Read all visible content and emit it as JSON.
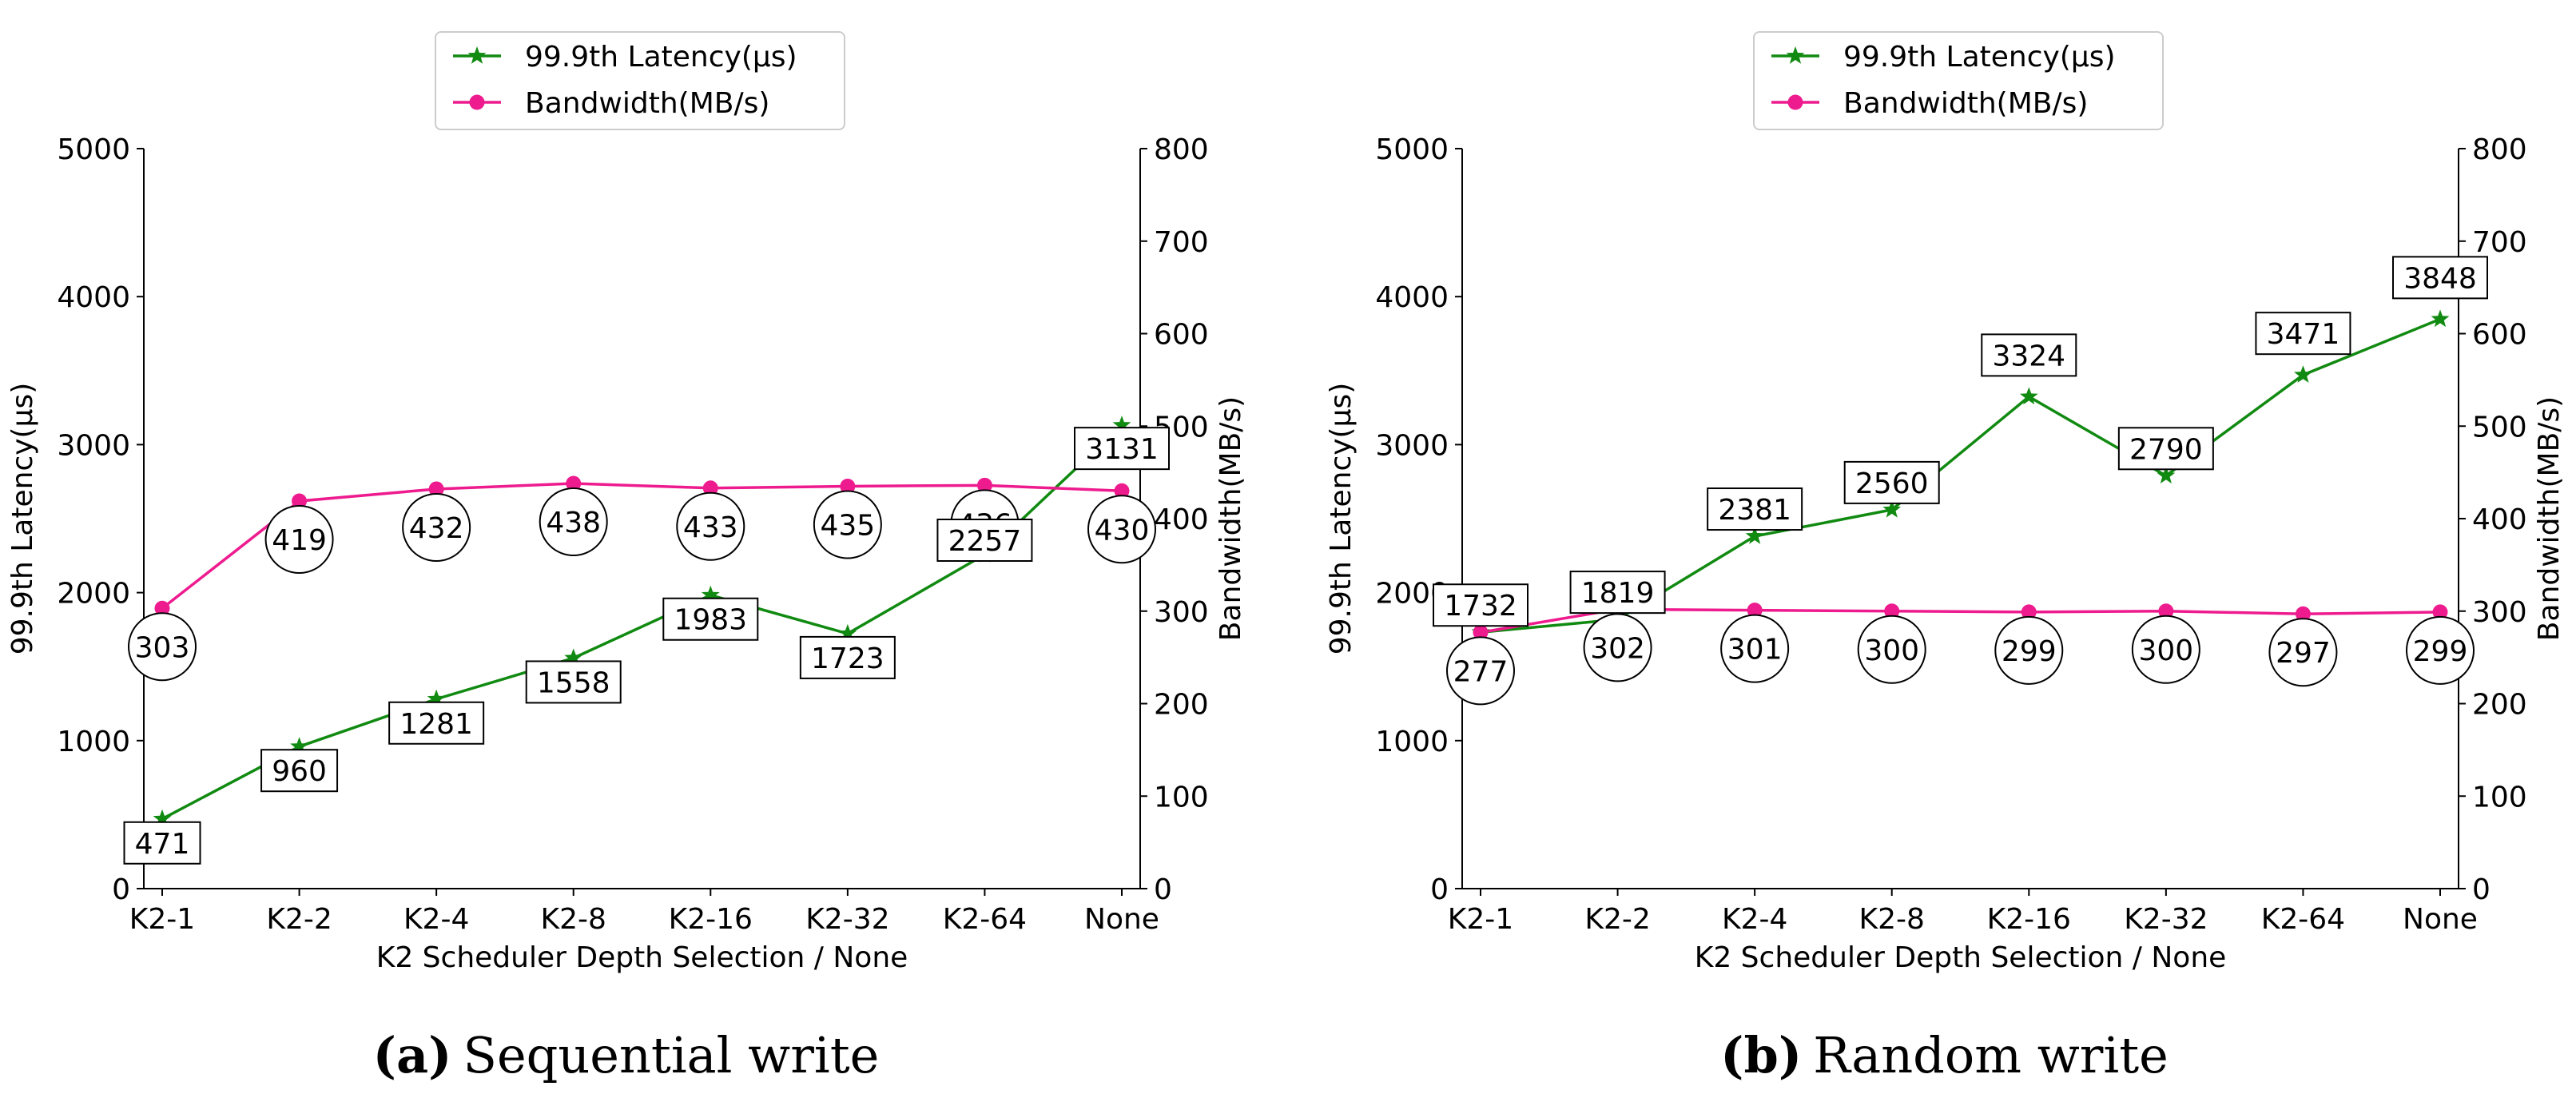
{
  "chart_data": [
    {
      "type": "line",
      "panel": "a",
      "caption_letter": "(a)",
      "caption_text": "Sequential write",
      "categories": [
        "K2-1",
        "K2-2",
        "K2-4",
        "K2-8",
        "K2-16",
        "K2-32",
        "K2-64",
        "None"
      ],
      "xlabel": "K2 Scheduler Depth Selection / None",
      "ylabel_left": "99.9th Latency(μs)",
      "ylabel_right": "Bandwidth(MB/s)",
      "ylim_left": [
        0,
        5000
      ],
      "yticks_left": [
        "0",
        "1000",
        "2000",
        "3000",
        "4000",
        "5000"
      ],
      "ylim_right": [
        0,
        800
      ],
      "yticks_right": [
        "0",
        "100",
        "200",
        "300",
        "400",
        "500",
        "600",
        "700",
        "800"
      ],
      "legend_location": "top-center",
      "grid": false,
      "series": [
        {
          "name": "99.9th Latency(μs)",
          "axis": "left",
          "marker": "star",
          "color": "#118a11",
          "values": [
            471,
            960,
            1281,
            1558,
            1983,
            1723,
            2257,
            3131
          ],
          "labels": [
            "471",
            "960",
            "1281",
            "1558",
            "1983",
            "1723",
            "2257",
            "3131"
          ]
        },
        {
          "name": "Bandwidth(MB/s)",
          "axis": "right",
          "marker": "circle",
          "color": "#ee1b8f",
          "values": [
            303,
            419,
            432,
            438,
            433,
            435,
            436,
            430
          ],
          "labels": [
            "303",
            "419",
            "432",
            "438",
            "433",
            "435",
            "436",
            "430"
          ]
        }
      ]
    },
    {
      "type": "line",
      "panel": "b",
      "caption_letter": "(b)",
      "caption_text": "Random write",
      "categories": [
        "K2-1",
        "K2-2",
        "K2-4",
        "K2-8",
        "K2-16",
        "K2-32",
        "K2-64",
        "None"
      ],
      "xlabel": "K2 Scheduler Depth Selection / None",
      "ylabel_left": "99.9th Latency(μs)",
      "ylabel_right": "Bandwidth(MB/s)",
      "ylim_left": [
        0,
        5000
      ],
      "yticks_left": [
        "0",
        "1000",
        "2000",
        "3000",
        "4000",
        "5000"
      ],
      "ylim_right": [
        0,
        800
      ],
      "yticks_right": [
        "0",
        "100",
        "200",
        "300",
        "400",
        "500",
        "600",
        "700",
        "800"
      ],
      "legend_location": "top-center",
      "grid": false,
      "series": [
        {
          "name": "99.9th Latency(μs)",
          "axis": "left",
          "marker": "star",
          "color": "#118a11",
          "values": [
            1732,
            1819,
            2381,
            2560,
            3324,
            2790,
            3471,
            3848
          ],
          "labels": [
            "1732",
            "1819",
            "2381",
            "2560",
            "3324",
            "2790",
            "3471",
            "3848"
          ]
        },
        {
          "name": "Bandwidth(MB/s)",
          "axis": "right",
          "marker": "circle",
          "color": "#ee1b8f",
          "values": [
            277,
            302,
            301,
            300,
            299,
            300,
            297,
            299
          ],
          "labels": [
            "277",
            "302",
            "301",
            "300",
            "299",
            "300",
            "297",
            "299"
          ]
        }
      ]
    }
  ]
}
